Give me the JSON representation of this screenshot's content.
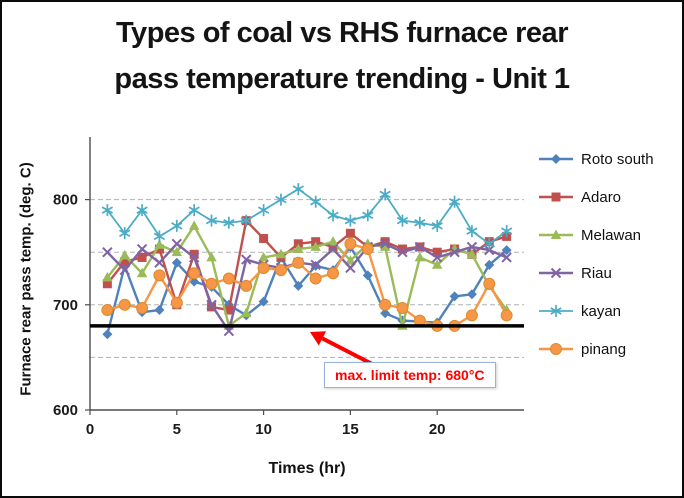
{
  "chart_data": {
    "type": "line",
    "title": "Types of coal vs RHS furnace rear pass temperature trending - Unit 1",
    "title_lines": [
      "Types of coal vs RHS furnace rear",
      "pass temperature trending - Unit 1"
    ],
    "xlabel": "Times (hr)",
    "ylabel": "Furnace rear pass temp. (deg. C)",
    "xlim": [
      0,
      25
    ],
    "ylim": [
      600,
      850
    ],
    "x_ticks": [
      0,
      5,
      10,
      15,
      20
    ],
    "y_ticks": [
      600,
      700,
      800
    ],
    "gridlines_y": [
      650,
      700,
      750,
      800
    ],
    "grid": "dashed-horizontal",
    "legend_position": "right",
    "x": [
      1,
      2,
      3,
      4,
      5,
      6,
      7,
      8,
      9,
      10,
      11,
      12,
      13,
      14,
      15,
      16,
      17,
      18,
      19,
      20,
      21,
      22,
      23,
      24
    ],
    "series": [
      {
        "name": "Roto south",
        "color": "#4F81BD",
        "marker": "diamond",
        "values": [
          672,
          737,
          693,
          695,
          740,
          722,
          717,
          700,
          690,
          703,
          745,
          718,
          737,
          733,
          755,
          728,
          692,
          685,
          684,
          683,
          708,
          710,
          738,
          752
        ]
      },
      {
        "name": "Adaro",
        "color": "#C0504D",
        "marker": "square",
        "values": [
          720,
          741,
          745,
          753,
          700,
          748,
          698,
          695,
          780,
          763,
          745,
          758,
          760,
          755,
          768,
          755,
          760,
          753,
          755,
          750,
          753,
          748,
          760,
          765
        ]
      },
      {
        "name": "Melawan",
        "color": "#9BBB59",
        "marker": "triangle",
        "values": [
          726,
          747,
          730,
          757,
          750,
          775,
          745,
          680,
          692,
          745,
          748,
          753,
          755,
          760,
          742,
          758,
          755,
          680,
          745,
          738,
          753,
          748,
          718,
          695
        ]
      },
      {
        "name": "Riau",
        "color": "#8064A2",
        "marker": "x",
        "values": [
          750,
          733,
          753,
          740,
          758,
          745,
          700,
          675,
          743,
          738,
          735,
          740,
          738,
          753,
          735,
          755,
          758,
          750,
          755,
          745,
          750,
          755,
          752,
          745
        ]
      },
      {
        "name": "kayan",
        "color": "#4BACC6",
        "marker": "star",
        "values": [
          790,
          768,
          790,
          765,
          775,
          790,
          780,
          778,
          780,
          790,
          800,
          810,
          798,
          785,
          780,
          785,
          805,
          780,
          778,
          775,
          798,
          770,
          758,
          770
        ]
      },
      {
        "name": "pinang",
        "color": "#F79646",
        "marker": "circle",
        "values": [
          695,
          700,
          697,
          728,
          702,
          730,
          720,
          725,
          718,
          735,
          733,
          740,
          725,
          730,
          758,
          753,
          700,
          697,
          685,
          680,
          680,
          690,
          720,
          690
        ]
      }
    ],
    "limit_line": {
      "value": 680,
      "color": "#000000"
    },
    "annotation": {
      "text": "max. limit temp: 680°C",
      "text_color": "#ff0000",
      "border_color": "#95b3d7",
      "arrow_color": "#ff0000"
    }
  }
}
